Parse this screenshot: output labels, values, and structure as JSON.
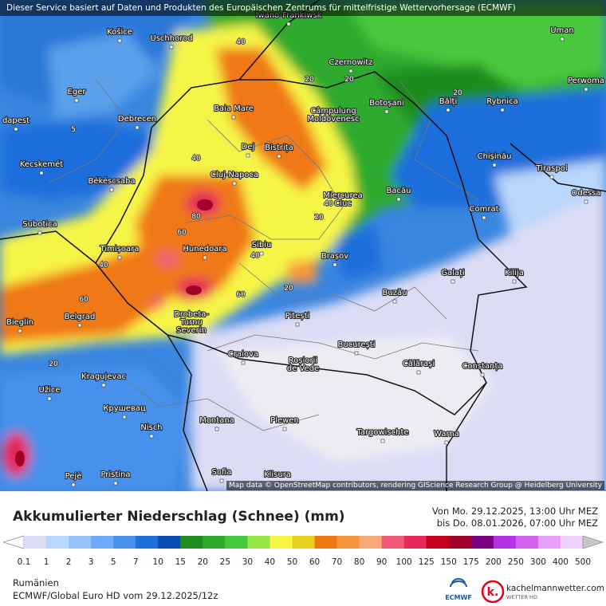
{
  "header": {
    "disclaimer": "Dieser Service basiert auf Daten und Produkten des Europäischen Zentrums für mittelfristige Wettervorhersage (ECMWF)"
  },
  "map": {
    "cities": [
      "Iwano-Frankiwsk",
      "Košice",
      "Uschhorod",
      "Czernowitz",
      "Uman",
      "Eger",
      "Baia Mare",
      [
        "Câmpulung",
        "Moldovenesc"
      ],
      "Botoșani",
      "Bălți",
      "Rybnica",
      "Perwoma",
      "dapest",
      "Debrecen",
      "Dej",
      "Bistrița",
      "Chișinău",
      "Tiraspol",
      "Kecskemét",
      "Cluj-Napoca",
      "Békéscsaba",
      "Bacău",
      [
        "Miercurea",
        "Ciuc"
      ],
      "Odessa",
      "Comrat",
      "Subotica",
      "Timișoara",
      "Hunedoara",
      "Sibiu",
      "Brașov",
      "Galați",
      "Kilija",
      "Buzău",
      "Bieglin",
      "Belgrad",
      [
        "Drobeta-",
        "Turnu",
        "Severin"
      ],
      "Pitești",
      "București",
      "Craiova",
      [
        "Roșiorii",
        "de Vede"
      ],
      "Călărași",
      "Constanța",
      "Kragujevac",
      "Užice",
      "Крушевац",
      "Nisch",
      "Montana",
      "Plewen",
      "Targowischte",
      "Warna",
      "Pejë",
      "Pristina",
      "Sofia",
      "Klisura"
    ],
    "contour_labels": [
      40,
      20,
      20,
      20,
      5,
      40,
      80,
      60,
      40,
      20,
      40,
      40,
      60,
      60,
      20,
      20
    ],
    "attribution": "Map data © OpenStreetMap contributors, rendering GIScience Research Group @ Heidelberg University"
  },
  "legend": {
    "title": "Akkumulierter Niederschlag (Schnee) (mm)",
    "period_from": "Von Mo. 29.12.2025, 13:00 Uhr MEZ",
    "period_to": "bis Do. 08.01.2026, 07:00 Uhr MEZ",
    "values": [
      0.1,
      1,
      2,
      3,
      5,
      7,
      10,
      15,
      20,
      25,
      30,
      40,
      50,
      60,
      70,
      80,
      90,
      100,
      125,
      150,
      175,
      200,
      250,
      300,
      400,
      500
    ],
    "colors": [
      "#dcdcf5",
      "#b9d7fa",
      "#96c3fa",
      "#6eaaf5",
      "#4690eb",
      "#1e6edc",
      "#0a4bb4",
      "#1e8c1e",
      "#2daa2d",
      "#46c83c",
      "#96e646",
      "#f5f546",
      "#e6d21e",
      "#f07814",
      "#f5963c",
      "#f5aa78",
      "#f05a78",
      "#e6285a",
      "#c8001e",
      "#a00028",
      "#780082",
      "#b432e6",
      "#d264f0",
      "#e6a0f5",
      "#f0d2fa"
    ],
    "below_color": "#ffffff",
    "above_color": "#c8c8c8"
  },
  "footer": {
    "region": "Rumänien",
    "model": "ECMWF/Global Euro HD vom  29.12.2025/12z",
    "ecmwf": "ECMWF",
    "logo_letter": "k.",
    "brand": "kachelmannwetter.com",
    "brand_sub": "WETTER HD"
  }
}
